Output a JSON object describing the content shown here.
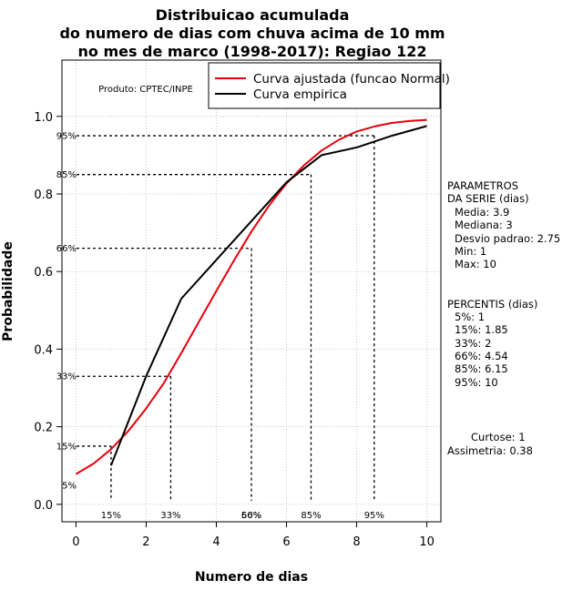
{
  "chart_data": {
    "type": "line",
    "title_lines": [
      "Distribuicao acumulada",
      "do numero de dias com chuva acima de 10 mm",
      "no mes de marco (1998-2017): Regiao 122"
    ],
    "xlabel": "Numero de dias",
    "ylabel": "Probabilidade",
    "xlim": [
      -0.4,
      10.4
    ],
    "ylim": [
      -0.045,
      1.145
    ],
    "x_ticks": [
      0,
      2,
      4,
      6,
      8,
      10
    ],
    "x_tick_labels": [
      "0",
      "2",
      "4",
      "6",
      "8",
      "10"
    ],
    "y_ticks": [
      0.0,
      0.2,
      0.4,
      0.6,
      0.8,
      1.0
    ],
    "y_tick_labels": [
      "0.0",
      "0.2",
      "0.4",
      "0.6",
      "0.8",
      "1.0"
    ],
    "grid": true,
    "credit": "Produto: CPTEC/INPE",
    "legend": {
      "position": "top-right",
      "entries": [
        {
          "label": "Curva ajustada (funcao Normal)",
          "color": "#e8000b"
        },
        {
          "label": "Curva empirica",
          "color": "#000000"
        }
      ]
    },
    "series": [
      {
        "name": "Curva ajustada (funcao Normal)",
        "color": "#e8000b",
        "x": [
          0,
          0.5,
          1,
          1.5,
          2,
          2.5,
          3,
          3.5,
          4,
          4.5,
          5,
          5.5,
          6,
          6.5,
          7,
          7.5,
          8,
          8.5,
          9,
          9.5,
          10
        ],
        "y": [
          0.078,
          0.105,
          0.142,
          0.19,
          0.247,
          0.312,
          0.39,
          0.47,
          0.55,
          0.628,
          0.703,
          0.77,
          0.827,
          0.874,
          0.912,
          0.94,
          0.961,
          0.974,
          0.983,
          0.988,
          0.991
        ]
      },
      {
        "name": "Curva empirica",
        "color": "#000000",
        "x": [
          1,
          2,
          3,
          4,
          5,
          6,
          7,
          8,
          9,
          10
        ],
        "y": [
          0.1,
          0.33,
          0.53,
          0.63,
          0.73,
          0.83,
          0.9,
          0.92,
          0.95,
          0.975
        ]
      }
    ],
    "percentile_guides": [
      {
        "label": "5%",
        "p": 0.05,
        "x": null,
        "marker": "5%",
        "show_bottom": false
      },
      {
        "label": "15%",
        "p": 0.15,
        "x": 1.0,
        "marker": "15%",
        "show_bottom": true
      },
      {
        "label": "33%",
        "p": 0.33,
        "x": 2.7,
        "marker": "33%",
        "show_bottom": true
      },
      {
        "label": "66%",
        "p": 0.66,
        "x": 5.0,
        "marker": "66%",
        "show_bottom": true
      },
      {
        "label": "85%",
        "p": 0.85,
        "x": 6.7,
        "marker": "85%",
        "show_bottom": true
      },
      {
        "label": "95%",
        "p": 0.95,
        "x": 8.5,
        "marker": "95%",
        "show_bottom": true
      }
    ],
    "extra_bottom_labels": [
      {
        "label": "50%",
        "x": 5.0
      }
    ],
    "side_panel": {
      "params_header": [
        "PARAMETROS",
        "DA SERIE (dias)"
      ],
      "params": [
        "Media: 3.9",
        "Mediana: 3",
        "Desvio padrao: 2.75",
        "Min: 1",
        "Max: 10"
      ],
      "percentis_header": "PERCENTIS (dias)",
      "percentis": [
        "5%: 1",
        "15%: 1.85",
        "33%: 2",
        "66%: 4.54",
        "85%: 6.15",
        "95%: 10"
      ],
      "curtose": "Curtose: 1",
      "assimetria": "Assimetria: 0.38"
    }
  }
}
